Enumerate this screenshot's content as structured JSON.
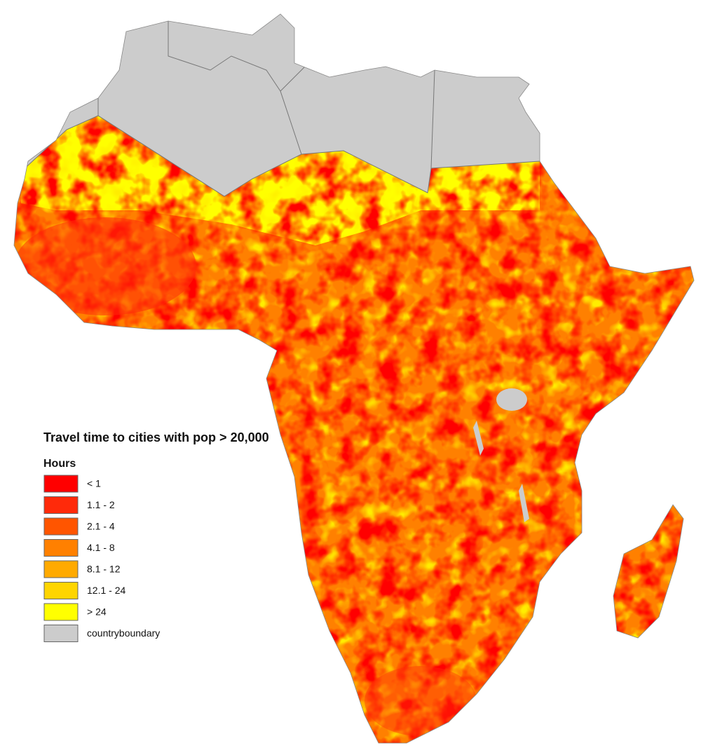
{
  "legend": {
    "title": "Travel time to cities with pop > 20,000",
    "subtitle": "Hours",
    "items": [
      {
        "label": "< 1",
        "color": "#ff0000"
      },
      {
        "label": "1.1 - 2",
        "color": "#ff2a0a"
      },
      {
        "label": "2.1 - 4",
        "color": "#ff5500"
      },
      {
        "label": "4.1 - 8",
        "color": "#ff8000"
      },
      {
        "label": "8.1 - 12",
        "color": "#ffaa00"
      },
      {
        "label": "12.1 - 24",
        "color": "#ffd500"
      },
      {
        "label": "> 24",
        "color": "#ffff00"
      },
      {
        "label": "countryboundary",
        "color": "#cccccc"
      }
    ]
  }
}
